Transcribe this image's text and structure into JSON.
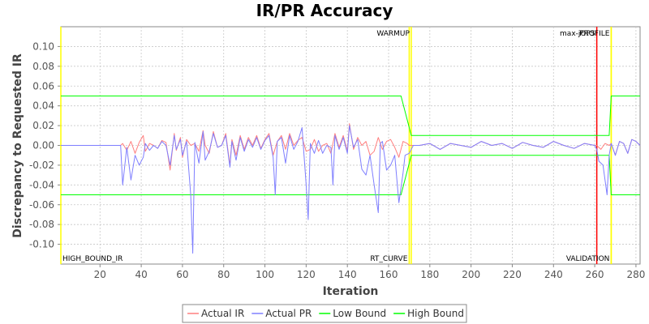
{
  "chart_data": {
    "type": "line",
    "title": "IR/PR Accuracy",
    "xlabel": "Iteration",
    "ylabel": "Discrepancy to Requested IR",
    "xlim": [
      1,
      282
    ],
    "ylim": [
      -0.12,
      0.12
    ],
    "xticks": [
      20,
      40,
      60,
      80,
      100,
      120,
      140,
      160,
      180,
      200,
      220,
      240,
      260,
      280
    ],
    "yticks": [
      0.1,
      0.08,
      0.06,
      0.04,
      0.02,
      0.0,
      -0.02,
      -0.04,
      -0.06,
      -0.08,
      -0.1
    ],
    "ytick_labels": [
      "0.10",
      "0.08",
      "0.06",
      "0.04",
      "0.02",
      "0.00",
      "-0.02",
      "-0.04",
      "-0.06",
      "-0.08",
      "-0.10"
    ],
    "grid": true,
    "legend_position": "bottom",
    "phase_markers": [
      {
        "label": "HIGH_BOUND_IR",
        "x": 1,
        "color": "#ffff00",
        "label_pos": "bottom"
      },
      {
        "label": "RT_CURVE",
        "x": 170,
        "color": "#ffff00",
        "label_pos": "bottom"
      },
      {
        "label": "WARMUP",
        "x": 171,
        "color": "#ffff00",
        "label_pos": "top"
      },
      {
        "label": "max-jOPS",
        "x": 261,
        "color": "#ff0000",
        "label_pos": "top"
      },
      {
        "label": "VALIDATION",
        "x": 268,
        "color": "#ffff00",
        "label_pos": "bottom"
      },
      {
        "label": "PROFILE",
        "x": 268,
        "color": "#ffff00",
        "label_pos": "top"
      }
    ],
    "series": [
      {
        "name": "Actual IR",
        "color": "#ff7f7f",
        "x": [
          1,
          30,
          31,
          33,
          35,
          37,
          39,
          41,
          42,
          44,
          46,
          48,
          50,
          52,
          54,
          56,
          57,
          59,
          60,
          62,
          64,
          66,
          68,
          70,
          71,
          73,
          75,
          77,
          79,
          81,
          83,
          84,
          86,
          88,
          90,
          92,
          94,
          96,
          98,
          100,
          102,
          104,
          106,
          108,
          110,
          112,
          114,
          116,
          118,
          120,
          122,
          124,
          126,
          128,
          130,
          132,
          134,
          136,
          138,
          140,
          141,
          143,
          145,
          147,
          149,
          151,
          153,
          155,
          157,
          159,
          161,
          163,
          165,
          167,
          169,
          170,
          172,
          175,
          180,
          185,
          190,
          195,
          200,
          205,
          210,
          215,
          220,
          225,
          230,
          235,
          240,
          245,
          250,
          255,
          260,
          261,
          263,
          265,
          267,
          268,
          270,
          272,
          274,
          276,
          278,
          280,
          282
        ],
        "y": [
          0.0,
          0.0,
          0.002,
          -0.005,
          0.004,
          -0.008,
          0.003,
          0.01,
          -0.006,
          0.002,
          0.0,
          -0.003,
          0.005,
          0.003,
          -0.025,
          0.012,
          -0.005,
          0.008,
          -0.012,
          0.006,
          0.0,
          0.002,
          -0.006,
          0.015,
          0.0,
          -0.008,
          0.014,
          -0.002,
          0.0,
          0.012,
          -0.02,
          0.006,
          -0.01,
          0.01,
          -0.004,
          0.008,
          0.0,
          0.01,
          -0.003,
          0.006,
          0.012,
          -0.01,
          0.004,
          0.01,
          -0.004,
          0.012,
          0.0,
          0.005,
          0.008,
          -0.006,
          -0.004,
          0.006,
          -0.006,
          0.0,
          0.002,
          -0.008,
          0.012,
          -0.002,
          0.01,
          -0.006,
          0.022,
          -0.004,
          0.008,
          0.0,
          0.004,
          -0.01,
          -0.006,
          0.008,
          -0.004,
          0.004,
          0.006,
          -0.002,
          -0.012,
          0.004,
          0.002,
          0.0,
          0.0,
          0.0,
          0.002,
          -0.004,
          0.002,
          0.0,
          -0.002,
          0.004,
          0.0,
          0.002,
          -0.003,
          0.003,
          0.0,
          -0.002,
          0.004,
          0.0,
          -0.003,
          0.002,
          0.0,
          0.0,
          -0.004,
          0.002,
          0.0,
          0.002,
          -0.01,
          0.004,
          0.002,
          -0.008,
          0.006,
          0.004,
          0.0
        ]
      },
      {
        "name": "Actual PR",
        "color": "#7f7fff",
        "x": [
          1,
          30,
          31,
          33,
          35,
          37,
          39,
          41,
          42,
          44,
          46,
          48,
          50,
          52,
          54,
          56,
          57,
          59,
          60,
          62,
          64,
          65,
          66,
          68,
          70,
          71,
          73,
          75,
          77,
          79,
          81,
          83,
          84,
          86,
          88,
          90,
          92,
          94,
          96,
          98,
          100,
          102,
          104,
          105,
          106,
          108,
          110,
          112,
          114,
          116,
          118,
          120,
          121,
          122,
          124,
          126,
          128,
          130,
          132,
          133,
          134,
          136,
          138,
          140,
          141,
          143,
          145,
          147,
          149,
          151,
          153,
          155,
          156,
          157,
          159,
          161,
          163,
          165,
          167,
          168,
          170,
          172,
          175,
          180,
          185,
          190,
          195,
          200,
          205,
          210,
          215,
          220,
          225,
          230,
          235,
          240,
          245,
          250,
          255,
          260,
          261,
          262,
          264,
          266,
          267,
          268,
          270,
          272,
          274,
          276,
          278,
          280,
          282
        ],
        "y": [
          0.0,
          0.0,
          -0.04,
          -0.002,
          -0.035,
          -0.01,
          -0.02,
          -0.012,
          0.002,
          -0.005,
          0.0,
          -0.003,
          0.004,
          0.0,
          -0.02,
          0.01,
          -0.004,
          0.006,
          -0.01,
          0.004,
          -0.05,
          -0.109,
          0.003,
          -0.018,
          0.014,
          -0.015,
          -0.006,
          0.012,
          -0.002,
          0.0,
          0.01,
          -0.022,
          0.004,
          -0.015,
          0.008,
          -0.006,
          0.006,
          -0.002,
          0.008,
          -0.004,
          0.005,
          0.01,
          -0.012,
          -0.05,
          0.004,
          0.008,
          -0.018,
          0.01,
          -0.004,
          0.004,
          0.018,
          -0.04,
          -0.075,
          0.002,
          -0.008,
          0.005,
          -0.008,
          0.0,
          -0.002,
          -0.04,
          0.01,
          -0.004,
          0.008,
          -0.008,
          0.02,
          -0.002,
          0.006,
          -0.024,
          -0.03,
          -0.01,
          -0.04,
          -0.068,
          0.002,
          0.004,
          -0.025,
          -0.02,
          -0.01,
          -0.058,
          -0.028,
          -0.01,
          -0.008,
          0.0,
          0.0,
          0.002,
          -0.004,
          0.002,
          0.0,
          -0.002,
          0.004,
          0.0,
          0.002,
          -0.003,
          0.003,
          0.0,
          -0.002,
          0.004,
          0.0,
          -0.003,
          0.002,
          0.0,
          -0.004,
          -0.016,
          -0.02,
          -0.05,
          -0.01,
          0.002,
          -0.01,
          0.004,
          0.002,
          -0.008,
          0.006,
          0.004,
          0.0
        ]
      },
      {
        "name": "Low Bound",
        "color": "#00ff00",
        "x": [
          1,
          166,
          171,
          267,
          268,
          282
        ],
        "y": [
          -0.05,
          -0.05,
          -0.01,
          -0.01,
          -0.05,
          -0.05
        ]
      },
      {
        "name": "High Bound",
        "color": "#00ff00",
        "x": [
          1,
          166,
          171,
          267,
          268,
          282
        ],
        "y": [
          0.05,
          0.05,
          0.01,
          0.01,
          0.05,
          0.05
        ]
      }
    ]
  }
}
